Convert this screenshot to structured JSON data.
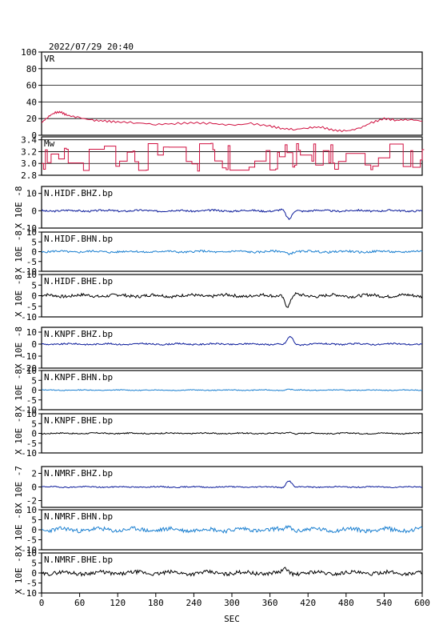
{
  "header": {
    "timestamp": "2022/07/29 20:40"
  },
  "xaxis": {
    "label": "SEC",
    "ticks": [
      "0",
      "60",
      "120",
      "180",
      "240",
      "300",
      "360",
      "420",
      "480",
      "540",
      "600"
    ],
    "range": [
      0,
      600
    ]
  },
  "colors": {
    "vr": "#d01040",
    "mw": "#d01040",
    "dark_blue": "#0a1a9a",
    "light_blue": "#1a7fd0",
    "black": "#000000"
  },
  "chart_data": [
    {
      "type": "line",
      "name": "VR",
      "label": "VR",
      "ylim": [
        0,
        100
      ],
      "yticks": [
        "0",
        "20",
        "40",
        "60",
        "80",
        "100"
      ],
      "grid": true,
      "series": [
        {
          "color": "#d01040",
          "x": [
            0,
            10,
            20,
            30,
            40,
            60,
            80,
            100,
            120,
            150,
            180,
            210,
            240,
            270,
            300,
            330,
            360,
            380,
            400,
            420,
            440,
            460,
            480,
            500,
            520,
            540,
            560,
            580,
            600
          ],
          "values": [
            15,
            22,
            27,
            28,
            24,
            21,
            18,
            17,
            16,
            15,
            13,
            14,
            15,
            14,
            12,
            14,
            11,
            8,
            7,
            9,
            10,
            6,
            5,
            8,
            15,
            20,
            18,
            19,
            17
          ]
        }
      ]
    },
    {
      "type": "line",
      "name": "Mw",
      "label": "Mw",
      "ylim": [
        2.8,
        3.45
      ],
      "yticks": [
        "2.8",
        "3.0",
        "3.2",
        "3.4"
      ],
      "grid": true,
      "series": [
        {
          "color": "#d01040",
          "seed": 11,
          "base": 3.0,
          "amp": 0.5
        }
      ]
    },
    {
      "type": "line",
      "label": "N.HIDF.BHZ.bp",
      "ylabel": "X 10E -8",
      "ylim": [
        -10,
        14
      ],
      "yticks": [
        "-10",
        "0",
        "10"
      ],
      "color_key": "dark_blue",
      "pulse": {
        "x": 390,
        "amp": -5
      },
      "noise": 0.5,
      "seed": 3
    },
    {
      "type": "line",
      "label": "N.HIDF.BHN.bp",
      "ylabel": "X 10E -8",
      "ylim": [
        -10,
        10
      ],
      "yticks": [
        "-10",
        "-5",
        "0",
        "5",
        "10"
      ],
      "color_key": "light_blue",
      "pulse": {
        "x": 390,
        "amp": -0.8
      },
      "noise": 0.5,
      "seed": 5
    },
    {
      "type": "line",
      "label": "N.HIDF.BHE.bp",
      "ylabel": "X 10E -8",
      "ylim": [
        -10,
        10
      ],
      "yticks": [
        "-10",
        "-5",
        "0",
        "5",
        "10"
      ],
      "color_key": "black",
      "pulse": {
        "x": 388,
        "amp": -5
      },
      "noise": 0.7,
      "seed": 7
    },
    {
      "type": "line",
      "label": "N.KNPF.BHZ.bp",
      "ylabel": "X 10E -8",
      "ylim": [
        -20,
        14
      ],
      "yticks": [
        "-20",
        "-10",
        "0",
        "10"
      ],
      "color_key": "dark_blue",
      "pulse": {
        "x": 392,
        "amp": 6
      },
      "noise": 0.6,
      "seed": 9
    },
    {
      "type": "line",
      "label": "N.KNPF.BHN.bp",
      "ylabel": "X 10E -8",
      "ylim": [
        -10,
        10
      ],
      "yticks": [
        "-10",
        "-5",
        "0",
        "5",
        "10"
      ],
      "color_key": "light_blue",
      "pulse": {
        "x": 390,
        "amp": 0.4
      },
      "noise": 0.2,
      "seed": 13
    },
    {
      "type": "line",
      "label": "N.KNPF.BHE.bp",
      "ylabel": "X 10E -8",
      "ylim": [
        -10,
        10
      ],
      "yticks": [
        "-10",
        "-5",
        "0",
        "5",
        "10"
      ],
      "color_key": "black",
      "pulse": {
        "x": 390,
        "amp": 0.6
      },
      "noise": 0.3,
      "seed": 17
    },
    {
      "type": "line",
      "label": "N.NMRF.BHZ.bp",
      "ylabel": "X 10E -7",
      "ylim": [
        -3,
        3
      ],
      "yticks": [
        "-2",
        "0",
        "2"
      ],
      "color_key": "dark_blue",
      "pulse": {
        "x": 390,
        "amp": 0.9
      },
      "noise": 0.08,
      "seed": 19
    },
    {
      "type": "line",
      "label": "N.NMRF.BHN.bp",
      "ylabel": "X 10E -8",
      "ylim": [
        -10,
        10
      ],
      "yticks": [
        "-10",
        "-5",
        "0",
        "5",
        "10"
      ],
      "color_key": "light_blue",
      "pulse": {
        "x": 390,
        "amp": 1.5
      },
      "noise": 1.0,
      "seed": 23
    },
    {
      "type": "line",
      "label": "N.NMRF.BHE.bp",
      "ylabel": "X 10E -8",
      "ylim": [
        -10,
        10
      ],
      "yticks": [
        "-10",
        "-5",
        "0",
        "5",
        "10"
      ],
      "color_key": "black",
      "pulse": {
        "x": 385,
        "amp": 1.8
      },
      "noise": 0.9,
      "seed": 29
    }
  ]
}
